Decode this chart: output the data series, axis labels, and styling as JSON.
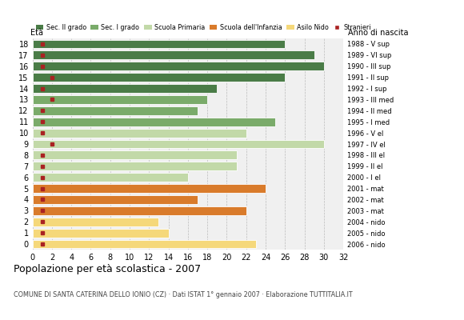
{
  "ages": [
    18,
    17,
    16,
    15,
    14,
    13,
    12,
    11,
    10,
    9,
    8,
    7,
    6,
    5,
    4,
    3,
    2,
    1,
    0
  ],
  "values": [
    26,
    29,
    30,
    26,
    19,
    18,
    17,
    25,
    22,
    30,
    21,
    21,
    16,
    24,
    17,
    22,
    13,
    14,
    23
  ],
  "stranieri": [
    1,
    1,
    1,
    2,
    1,
    2,
    1,
    1,
    1,
    2,
    1,
    1,
    1,
    1,
    1,
    1,
    1,
    1,
    1
  ],
  "bar_colors": [
    "#4a7c47",
    "#4a7c47",
    "#4a7c47",
    "#4a7c47",
    "#4a7c47",
    "#7aab6a",
    "#7aab6a",
    "#7aab6a",
    "#c2d9a8",
    "#c2d9a8",
    "#c2d9a8",
    "#c2d9a8",
    "#c2d9a8",
    "#d97b2b",
    "#d97b2b",
    "#d97b2b",
    "#f5d87a",
    "#f5d87a",
    "#f5d87a"
  ],
  "right_labels": [
    "1988 - V sup",
    "1989 - VI sup",
    "1990 - III sup",
    "1991 - II sup",
    "1992 - I sup",
    "1993 - III med",
    "1994 - II med",
    "1995 - I med",
    "1996 - V el",
    "1997 - IV el",
    "1998 - III el",
    "1999 - II el",
    "2000 - I el",
    "2001 - mat",
    "2002 - mat",
    "2003 - mat",
    "2004 - nido",
    "2005 - nido",
    "2006 - nido"
  ],
  "legend_labels": [
    "Sec. II grado",
    "Sec. I grado",
    "Scuola Primaria",
    "Scuola dell'Infanzia",
    "Asilo Nido",
    "Stranieri"
  ],
  "legend_colors": [
    "#4a7c47",
    "#7aab6a",
    "#c2d9a8",
    "#d97b2b",
    "#f5d87a",
    "#aa2222"
  ],
  "stranieri_color": "#aa2222",
  "title": "Popolazione per età scolastica - 2007",
  "subtitle": "COMUNE DI SANTA CATERINA DELLO IONIO (CZ) · Dati ISTAT 1° gennaio 2007 · Elaborazione TUTTITALIA.IT",
  "xlabel_left": "Età",
  "xlabel_right": "Anno di nascita",
  "xlim": [
    0,
    32
  ],
  "xticks": [
    0,
    2,
    4,
    6,
    8,
    10,
    12,
    14,
    16,
    18,
    20,
    22,
    24,
    26,
    28,
    30,
    32
  ],
  "background_color": "#ffffff",
  "plot_bg_color": "#f0f0f0",
  "grid_color": "#999999"
}
